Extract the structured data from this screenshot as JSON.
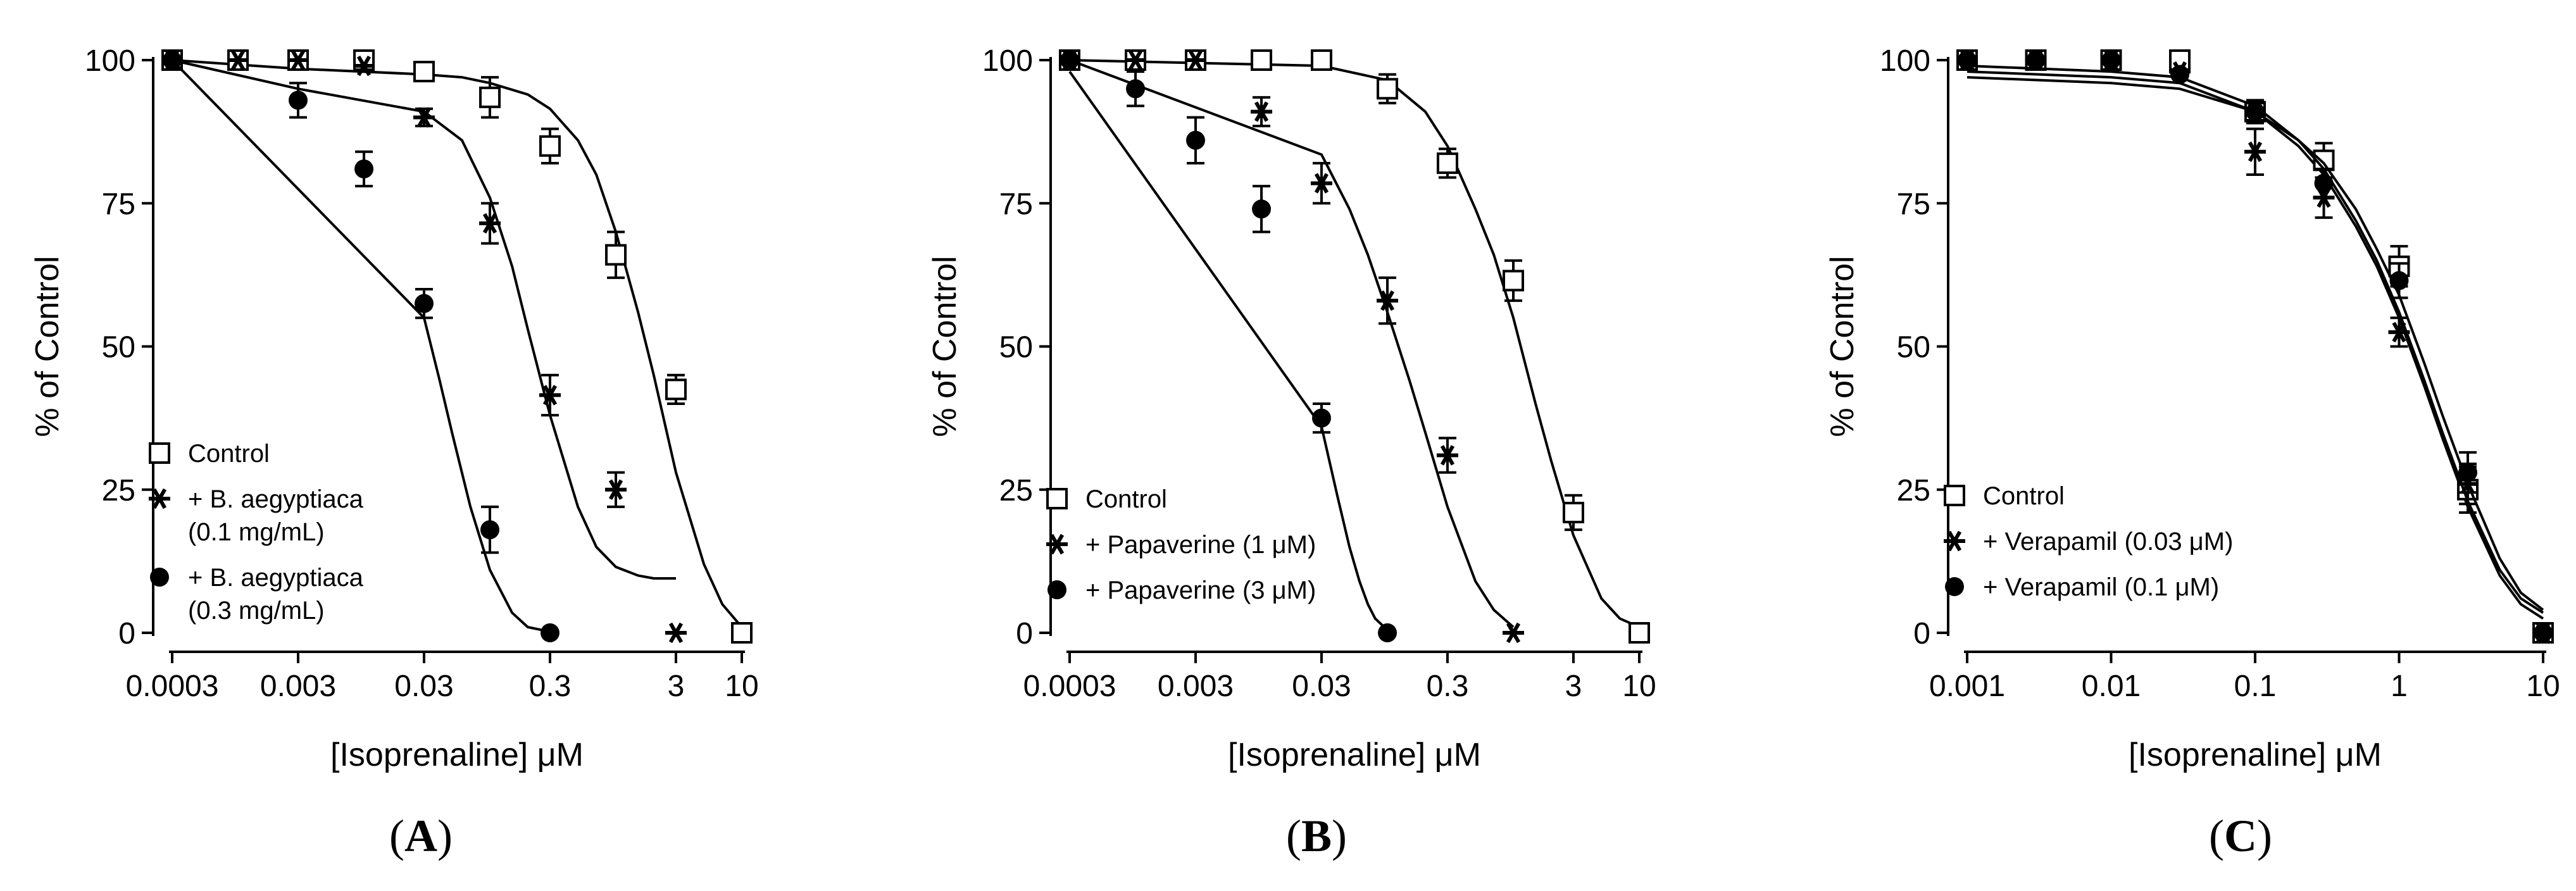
{
  "figure": {
    "panels": [
      {
        "id": "A",
        "label_open": "(",
        "label_letter": "A",
        "label_close": ")"
      },
      {
        "id": "B",
        "label_open": "(",
        "label_letter": "B",
        "label_close": ")"
      },
      {
        "id": "C",
        "label_open": "(",
        "label_letter": "C",
        "label_close": ")"
      }
    ]
  },
  "chart_data": [
    {
      "type": "scatter",
      "panel": "A",
      "title": "",
      "xlabel": "[Isoprenaline] μM",
      "ylabel": "% of Control",
      "xscale": "log",
      "xlim": [
        0.0003,
        10
      ],
      "ylim": [
        0,
        100
      ],
      "xticks": [
        0.0003,
        0.003,
        0.03,
        0.3,
        3,
        10
      ],
      "xtick_labels": [
        "0.0003",
        "0.003",
        "0.03",
        "0.3",
        "3",
        "10"
      ],
      "yticks": [
        0,
        25,
        50,
        75,
        100
      ],
      "ytick_labels": [
        "0",
        "25",
        "50",
        "75",
        "100"
      ],
      "legend_position": "bottom-left",
      "series": [
        {
          "name": "Control",
          "legend": [
            "Control"
          ],
          "marker": "open-square",
          "x": [
            0.0003,
            0.001,
            0.003,
            0.01,
            0.03,
            0.1,
            0.3,
            1,
            3,
            10
          ],
          "y": [
            100,
            100,
            100,
            100,
            98,
            93.5,
            85,
            66,
            42.5,
            0
          ],
          "err": [
            0,
            0,
            0,
            0,
            1.5,
            3.5,
            3,
            4,
            2.5,
            0
          ],
          "fit_x": [
            0.0003,
            0.003,
            0.03,
            0.06,
            0.1,
            0.2,
            0.3,
            0.5,
            0.7,
            1,
            1.5,
            2,
            3,
            5,
            7,
            10
          ],
          "fit_y": [
            100,
            98.5,
            97.5,
            97,
            96,
            94,
            91.5,
            86,
            80,
            70,
            56,
            45,
            28,
            12,
            5,
            1
          ]
        },
        {
          "name": "+ B. aegyptiaca (0.1 mg/mL)",
          "legend": [
            "+ B. aegyptiaca",
            "(0.1 mg/mL)"
          ],
          "marker": "asterisk",
          "x": [
            0.0003,
            0.001,
            0.003,
            0.01,
            0.03,
            0.1,
            0.3,
            1,
            3
          ],
          "y": [
            100,
            100,
            100,
            99,
            90,
            71.5,
            41.5,
            25,
            0
          ],
          "err": [
            0,
            0,
            0,
            0,
            1.5,
            3.5,
            3.5,
            3,
            0
          ],
          "fit_x": [
            0.0003,
            0.003,
            0.03,
            0.06,
            0.1,
            0.15,
            0.2,
            0.3,
            0.5,
            0.7,
            1,
            1.5,
            2,
            3
          ],
          "fit_y": [
            100,
            95,
            91,
            86,
            76,
            64,
            53,
            38,
            22,
            15,
            11.5,
            10,
            9.5,
            9.5
          ]
        },
        {
          "name": "+ B. aegyptiaca (0.3 mg/mL)",
          "legend": [
            "+ B. aegyptiaca",
            "(0.3 mg/mL)"
          ],
          "marker": "filled-circle",
          "x": [
            0.0003,
            0.003,
            0.01,
            0.03,
            0.1,
            0.3
          ],
          "y": [
            100,
            93,
            81,
            57.5,
            18,
            0
          ],
          "err": [
            0,
            3,
            3,
            2.5,
            4,
            0
          ],
          "fit_x": [
            0.0003,
            0.03,
            0.04,
            0.05,
            0.07,
            0.1,
            0.15,
            0.2,
            0.3
          ],
          "fit_y": [
            100,
            55,
            44,
            35,
            22,
            11,
            3.5,
            1,
            0.2
          ]
        }
      ]
    },
    {
      "type": "scatter",
      "panel": "B",
      "title": "",
      "xlabel": "[Isoprenaline] μM",
      "ylabel": "% of Control",
      "xscale": "log",
      "xlim": [
        0.0003,
        10
      ],
      "ylim": [
        0,
        100
      ],
      "xticks": [
        0.0003,
        0.003,
        0.03,
        0.3,
        3,
        10
      ],
      "xtick_labels": [
        "0.0003",
        "0.003",
        "0.03",
        "0.3",
        "3",
        "10"
      ],
      "yticks": [
        0,
        25,
        50,
        75,
        100
      ],
      "ytick_labels": [
        "0",
        "25",
        "50",
        "75",
        "100"
      ],
      "legend_position": "bottom-left",
      "series": [
        {
          "name": "Control",
          "legend": [
            "Control"
          ],
          "marker": "open-square",
          "x": [
            0.0003,
            0.001,
            0.003,
            0.01,
            0.03,
            0.1,
            0.3,
            1,
            3,
            10
          ],
          "y": [
            100,
            100,
            100,
            100,
            100,
            95,
            82,
            61.5,
            21,
            0
          ],
          "err": [
            0,
            0,
            0,
            0,
            0,
            2.5,
            2.5,
            3.5,
            3,
            0
          ],
          "fit_x": [
            0.0003,
            0.003,
            0.03,
            0.1,
            0.2,
            0.3,
            0.5,
            0.7,
            1,
            1.5,
            2,
            3,
            5,
            7,
            10
          ],
          "fit_y": [
            100,
            99.5,
            99,
            96.5,
            91,
            85,
            74,
            66,
            55,
            40,
            30,
            17,
            6,
            2.5,
            1
          ]
        },
        {
          "name": "+ Papaverine (1 μM)",
          "legend": [
            "+ Papaverine (1 μM)"
          ],
          "marker": "asterisk",
          "x": [
            0.0003,
            0.001,
            0.003,
            0.01,
            0.03,
            0.1,
            0.3,
            1
          ],
          "y": [
            100,
            100,
            100,
            91,
            78.5,
            58,
            31,
            0
          ],
          "err": [
            0,
            0,
            0,
            2.5,
            3.5,
            4,
            3,
            0
          ],
          "fit_x": [
            0.0003,
            0.03,
            0.05,
            0.07,
            0.1,
            0.15,
            0.2,
            0.3,
            0.5,
            0.7,
            1
          ],
          "fit_y": [
            100,
            83.5,
            74,
            66,
            56,
            44,
            35,
            22,
            9,
            4,
            1
          ]
        },
        {
          "name": "+ Papaverine (3 μM)",
          "legend": [
            "+ Papaverine (3 μM)"
          ],
          "marker": "filled-circle",
          "x": [
            0.0003,
            0.001,
            0.003,
            0.01,
            0.03,
            0.1
          ],
          "y": [
            100,
            95,
            86,
            74,
            37.5,
            0
          ],
          "err": [
            0,
            3,
            4,
            4,
            2.5,
            0
          ],
          "fit_x": [
            0.0003,
            0.03,
            0.04,
            0.05,
            0.06,
            0.07,
            0.08,
            0.1
          ],
          "fit_y": [
            98,
            36,
            24,
            15,
            9,
            5,
            2.5,
            0.5
          ]
        }
      ]
    },
    {
      "type": "scatter",
      "panel": "C",
      "title": "",
      "xlabel": "[Isoprenaline] μM",
      "ylabel": "% of Control",
      "xscale": "log",
      "xlim": [
        0.001,
        10
      ],
      "ylim": [
        0,
        100
      ],
      "xticks": [
        0.001,
        0.01,
        0.1,
        1,
        10
      ],
      "xtick_labels": [
        "0.001",
        "0.01",
        "0.1",
        "1",
        "10"
      ],
      "yticks": [
        0,
        25,
        50,
        75,
        100
      ],
      "ytick_labels": [
        "0",
        "25",
        "50",
        "75",
        "100"
      ],
      "legend_position": "bottom-left",
      "series": [
        {
          "name": "Control",
          "legend": [
            "Control"
          ],
          "marker": "open-square",
          "x": [
            0.001,
            0.003,
            0.01,
            0.03,
            0.1,
            0.3,
            1,
            3,
            10
          ],
          "y": [
            100,
            100,
            100,
            100,
            91,
            82.5,
            64,
            25,
            0
          ],
          "err": [
            0,
            0,
            0,
            0,
            2,
            3,
            3.5,
            4,
            0
          ],
          "fit_x": [
            0.001,
            0.01,
            0.03,
            0.1,
            0.2,
            0.3,
            0.5,
            0.7,
            1,
            1.5,
            2,
            3,
            5,
            7,
            10
          ],
          "fit_y": [
            98,
            97,
            96,
            91,
            85,
            80,
            71,
            64,
            55,
            43,
            34,
            22,
            10,
            5,
            2.5
          ]
        },
        {
          "name": "+ Verapamil (0.03 μM)",
          "legend": [
            "+ Verapamil (0.03 μM)"
          ],
          "marker": "asterisk",
          "x": [
            0.001,
            0.003,
            0.01,
            0.03,
            0.1,
            0.3,
            1,
            3,
            10
          ],
          "y": [
            100,
            100,
            100,
            98,
            84,
            76,
            52.5,
            26,
            0
          ],
          "err": [
            0,
            0,
            0,
            0,
            4,
            3.5,
            2.5,
            3.5,
            0
          ],
          "fit_x": [
            0.001,
            0.01,
            0.03,
            0.1,
            0.2,
            0.3,
            0.5,
            0.7,
            1,
            1.5,
            2,
            3,
            5,
            7,
            10
          ],
          "fit_y": [
            99,
            98,
            97,
            92,
            86,
            81,
            72,
            65,
            56,
            44,
            35,
            23,
            11,
            6,
            3.5
          ]
        },
        {
          "name": "+ Verapamil (0.1 μM)",
          "legend": [
            "+ Verapamil (0.1 μM)"
          ],
          "marker": "filled-circle",
          "x": [
            0.001,
            0.003,
            0.01,
            0.03,
            0.1,
            0.3,
            1,
            3,
            10
          ],
          "y": [
            100,
            100,
            100,
            97.5,
            91,
            78.5,
            61.5,
            28,
            0
          ],
          "err": [
            0,
            0,
            0,
            0,
            1.5,
            2.5,
            3,
            3.5,
            0
          ],
          "fit_x": [
            0.001,
            0.01,
            0.03,
            0.1,
            0.2,
            0.3,
            0.5,
            0.7,
            1,
            1.5,
            2,
            3,
            5,
            7,
            10
          ],
          "fit_y": [
            97,
            96,
            95,
            91,
            86,
            82,
            74,
            67,
            59,
            47,
            38,
            26,
            13,
            7,
            4
          ]
        }
      ]
    }
  ]
}
